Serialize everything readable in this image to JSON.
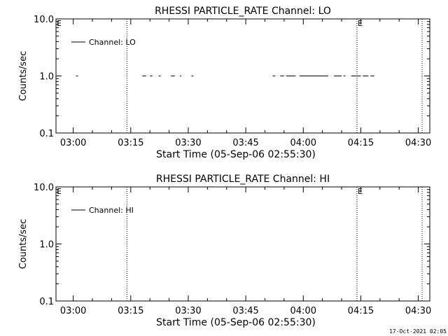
{
  "footer_timestamp": "17-Oct-2021 02:05",
  "chart_data": [
    {
      "type": "line",
      "title": "RHESSI PARTICLE_RATE Channel: LO",
      "xlabel": "Start Time (05-Sep-06 02:55:30)",
      "ylabel": "Counts/sec",
      "y_scale": "log",
      "ylim": [
        0.1,
        10.0
      ],
      "xlim": [
        "02:55:30",
        "04:33:00"
      ],
      "x_ticks": [
        "03:00",
        "03:15",
        "03:30",
        "03:45",
        "04:00",
        "04:15",
        "04:30"
      ],
      "y_ticks": [
        "10.0",
        "1.0",
        "0.1"
      ],
      "legend": "top-left",
      "grid": false,
      "series": [
        {
          "name": "Channel: LO",
          "color": "#000000",
          "segments": [
            {
              "x": [
                "03:00:45",
                "03:01:15"
              ],
              "y": 1.0
            },
            {
              "x": [
                "03:18:00",
                "03:19:00"
              ],
              "y": 1.0
            },
            {
              "x": [
                "03:20:00",
                "03:20:40"
              ],
              "y": 1.0
            },
            {
              "x": [
                "03:22:15",
                "03:22:50"
              ],
              "y": 1.0
            },
            {
              "x": [
                "03:25:30",
                "03:26:30"
              ],
              "y": 1.0
            },
            {
              "x": [
                "03:27:50",
                "03:28:10"
              ],
              "y": 1.0
            },
            {
              "x": [
                "03:30:50",
                "03:31:20"
              ],
              "y": 1.0
            },
            {
              "x": [
                "03:52:00",
                "03:52:40"
              ],
              "y": 1.0
            },
            {
              "x": [
                "03:54:00",
                "03:55:00"
              ],
              "y": 1.0
            },
            {
              "x": [
                "03:55:30",
                "03:58:00"
              ],
              "y": 1.0
            },
            {
              "x": [
                "03:59:00",
                "04:06:30"
              ],
              "y": 1.0
            },
            {
              "x": [
                "04:08:00",
                "04:10:00"
              ],
              "y": 1.0
            },
            {
              "x": [
                "04:10:30",
                "04:11:00"
              ],
              "y": 1.0
            },
            {
              "x": [
                "04:12:30",
                "04:15:00"
              ],
              "y": 1.0
            },
            {
              "x": [
                "04:15:30",
                "04:17:00"
              ],
              "y": 1.0
            },
            {
              "x": [
                "04:17:30",
                "04:18:30"
              ],
              "y": 1.0
            }
          ]
        }
      ],
      "vlines": [
        {
          "x": "03:14:00",
          "style": "dotted"
        },
        {
          "x": "04:14:00",
          "style": "dotted",
          "label": "E"
        },
        {
          "x": "04:31:00",
          "style": "dotted"
        }
      ],
      "corner_label": "E"
    },
    {
      "type": "line",
      "title": "RHESSI PARTICLE_RATE Channel: HI",
      "xlabel": "Start Time (05-Sep-06 02:55:30)",
      "ylabel": "Counts/sec",
      "y_scale": "log",
      "ylim": [
        0.1,
        10.0
      ],
      "xlim": [
        "02:55:30",
        "04:33:00"
      ],
      "x_ticks": [
        "03:00",
        "03:15",
        "03:30",
        "03:45",
        "04:00",
        "04:15",
        "04:30"
      ],
      "y_ticks": [
        "10.0",
        "1.0",
        "0.1"
      ],
      "legend": "top-left",
      "grid": false,
      "series": [
        {
          "name": "Channel: HI",
          "color": "#000000",
          "segments": []
        }
      ],
      "vlines": [
        {
          "x": "03:14:00",
          "style": "dotted"
        },
        {
          "x": "04:14:00",
          "style": "dotted",
          "label": "E"
        },
        {
          "x": "04:31:00",
          "style": "dotted"
        }
      ],
      "corner_label": "E"
    }
  ]
}
